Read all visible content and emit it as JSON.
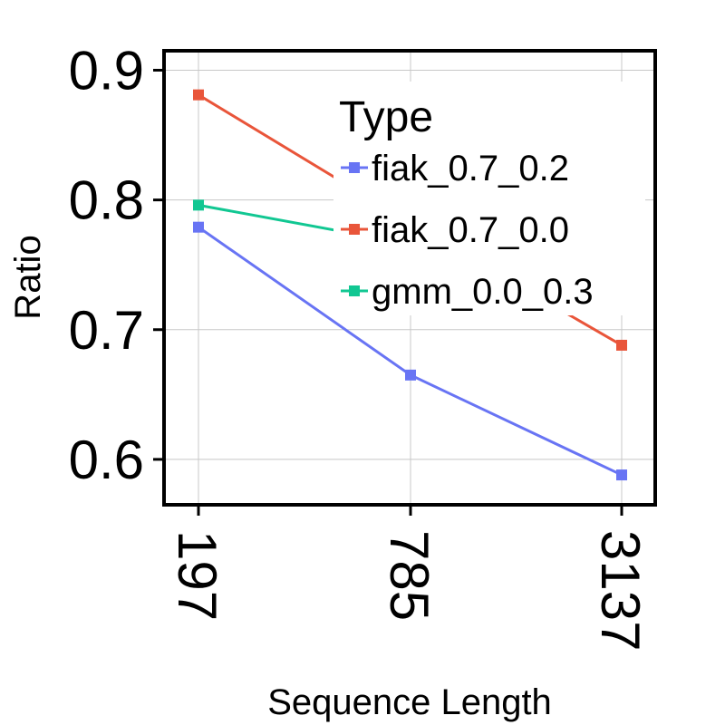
{
  "chart_data": {
    "type": "line",
    "categories": [
      "197",
      "785",
      "3137"
    ],
    "xlabel": "Sequence Length",
    "ylabel": "Ratio",
    "ylim": [
      0.565,
      0.915
    ],
    "yticks": [
      "0.6",
      "0.7",
      "0.8",
      "0.9"
    ],
    "ytick_values": [
      0.6,
      0.7,
      0.8,
      0.9
    ],
    "grid": true,
    "legend": {
      "title": "Type",
      "placement": "top-right"
    },
    "series": [
      {
        "name": "fiak_0.7_0.2",
        "color": "#6874f4",
        "values": [
          0.779,
          0.665,
          0.588
        ]
      },
      {
        "name": "fiak_0.7_0.0",
        "color": "#e9553a",
        "values": [
          0.881,
          0.782,
          0.688
        ]
      },
      {
        "name": "gmm_0.0_0.3",
        "color": "#11c792",
        "values": [
          0.796,
          0.766,
          null
        ]
      }
    ]
  }
}
